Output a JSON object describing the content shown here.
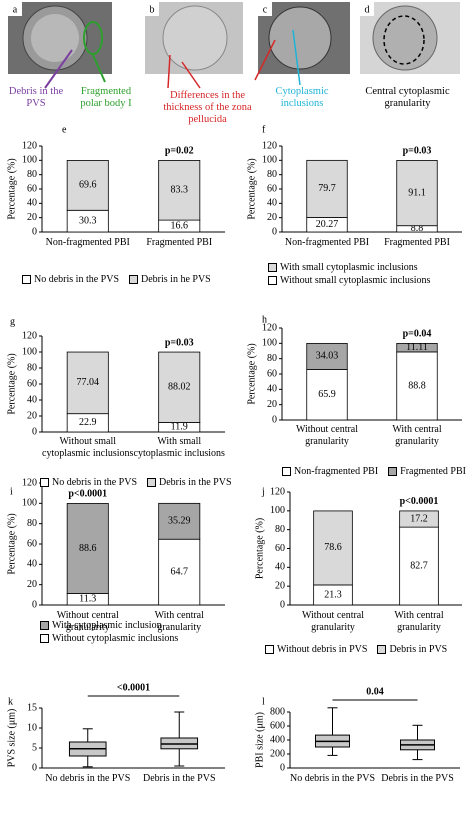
{
  "image_labels": [
    "a",
    "b",
    "c",
    "d"
  ],
  "image_captions": [
    "Debris in the PVS",
    "Fragmented polar body I",
    "Differences in the thickness of the zona pellucida",
    "Cytoplasmic inclusions",
    "Central cytoplasmic granularity"
  ],
  "chart_data": [
    {
      "type": "stacked_bar",
      "panel": "e",
      "ylabel": "Percentage (%)",
      "categories": [
        "Non-fragmented PBI",
        "Fragmented PBI"
      ],
      "series": [
        {
          "name": "No debris in the PVS",
          "color": "#ffffff",
          "values": [
            30.3,
            16.6
          ]
        },
        {
          "name": "Debris in he PVS",
          "color": "#d9d9d9",
          "values": [
            69.6,
            83.3
          ]
        }
      ],
      "ylim": [
        0,
        120
      ],
      "yticks": [
        0,
        20,
        40,
        60,
        80,
        100,
        120
      ],
      "annotation": "p=0.02"
    },
    {
      "type": "stacked_bar",
      "panel": "f",
      "ylabel": "Percentage (%)",
      "categories": [
        "Non-fragmented PBI",
        "Fragmented PBI"
      ],
      "series": [
        {
          "name": "Without small cytoplasmic inclusions",
          "color": "#ffffff",
          "values": [
            20.27,
            8.8
          ]
        },
        {
          "name": "With small cytoplasmic inclusions",
          "color": "#d9d9d9",
          "values": [
            79.7,
            91.1
          ]
        }
      ],
      "ylim": [
        0,
        120
      ],
      "yticks": [
        0,
        20,
        40,
        60,
        80,
        100,
        120
      ],
      "annotation": "p=0.03"
    },
    {
      "type": "stacked_bar",
      "panel": "g",
      "ylabel": "Percentage (%)",
      "categories": [
        "Without small cytoplasmic inclusions",
        "With small cytoplasmic inclusions"
      ],
      "series": [
        {
          "name": "No debris in the PVS",
          "color": "#ffffff",
          "values": [
            22.9,
            11.9
          ]
        },
        {
          "name": "Debris in the PVS",
          "color": "#d9d9d9",
          "values": [
            77.04,
            88.02
          ]
        }
      ],
      "ylim": [
        0,
        120
      ],
      "yticks": [
        0,
        20,
        40,
        60,
        80,
        100,
        120
      ],
      "annotation": "p=0.03"
    },
    {
      "type": "stacked_bar",
      "panel": "h",
      "ylabel": "Percentage (%)",
      "categories": [
        "Without central granularity",
        "With central granularity"
      ],
      "series": [
        {
          "name": "Non-fragmented PBI",
          "color": "#ffffff",
          "values": [
            65.9,
            88.8
          ]
        },
        {
          "name": "Fragmented PBI",
          "color": "#a6a6a6",
          "values": [
            34.03,
            11.11
          ]
        }
      ],
      "ylim": [
        0,
        120
      ],
      "yticks": [
        0,
        20,
        40,
        60,
        80,
        100,
        120
      ],
      "annotation": "p=0.04"
    },
    {
      "type": "stacked_bar",
      "panel": "i",
      "ylabel": "Percentage (%)",
      "categories": [
        "Without central granularity",
        "With central granularity"
      ],
      "series": [
        {
          "name": "Without cytoplasmic inclusions",
          "color": "#ffffff",
          "values": [
            11.3,
            64.7
          ]
        },
        {
          "name": "With cytoplasmic inclusion",
          "color": "#a6a6a6",
          "values": [
            88.6,
            35.29
          ]
        }
      ],
      "ylim": [
        0,
        120
      ],
      "yticks": [
        0,
        20,
        40,
        60,
        80,
        100,
        120
      ],
      "annotation": "p<0.0001"
    },
    {
      "type": "stacked_bar",
      "panel": "j",
      "ylabel": "Percentage (%)",
      "categories": [
        "Without central granularity",
        "With central granularity"
      ],
      "series": [
        {
          "name": "Without debris in PVS",
          "color": "#ffffff",
          "values": [
            21.3,
            82.7
          ]
        },
        {
          "name": "Debris in PVS",
          "color": "#d9d9d9",
          "values": [
            78.6,
            17.2
          ]
        }
      ],
      "ylim": [
        0,
        120
      ],
      "yticks": [
        0,
        20,
        40,
        60,
        80,
        100,
        120
      ],
      "annotation": "p<0.0001"
    },
    {
      "type": "box",
      "panel": "k",
      "ylabel": "PVS size (μm)",
      "categories": [
        "No debris in the PVS",
        "Debris in the PVS"
      ],
      "color": "#c8c8c8",
      "boxes": [
        {
          "low": 0.3,
          "q1": 3,
          "median": 4.8,
          "q3": 6.5,
          "high": 9.8
        },
        {
          "low": 0.5,
          "q1": 4.8,
          "median": 6,
          "q3": 7.5,
          "high": 14
        }
      ],
      "ylim": [
        0,
        15
      ],
      "yticks": [
        0,
        5,
        10,
        15
      ],
      "annotation": "<0.0001"
    },
    {
      "type": "box",
      "panel": "l",
      "ylabel": "PBI size (μm)",
      "categories": [
        "No debris in the PVS",
        "Debris in the PVS"
      ],
      "color": "#c8c8c8",
      "boxes": [
        {
          "low": 180,
          "q1": 300,
          "median": 380,
          "q3": 470,
          "high": 860
        },
        {
          "low": 120,
          "q1": 260,
          "median": 330,
          "q3": 400,
          "high": 610
        }
      ],
      "ylim": [
        0,
        800
      ],
      "yticks": [
        0,
        200,
        400,
        600,
        800
      ],
      "annotation": "0.04"
    }
  ]
}
